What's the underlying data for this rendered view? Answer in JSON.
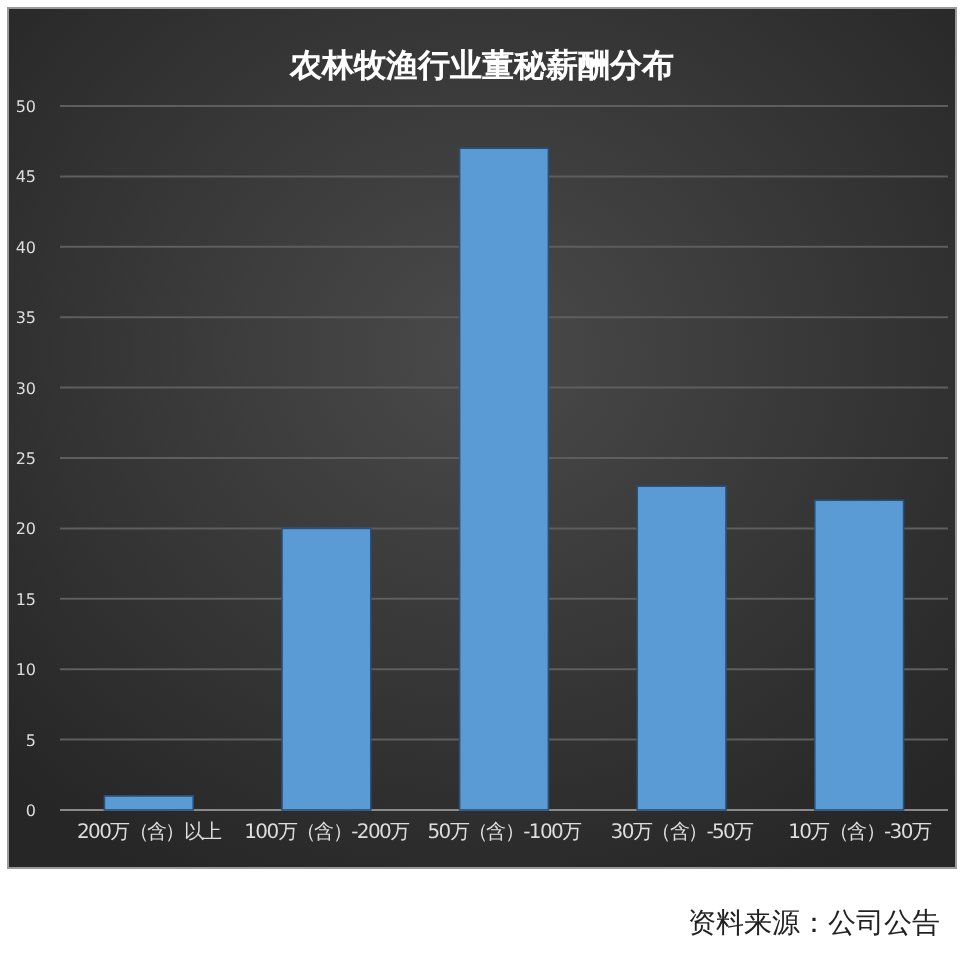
{
  "chart_data": {
    "type": "bar",
    "title": "农林牧渔行业董秘薪酬分布",
    "categories": [
      "200万（含）以上",
      "100万（含）-200万",
      "50万（含）-100万",
      "30万（含）-50万",
      "10万（含）-30万"
    ],
    "values": [
      1,
      20,
      47,
      23,
      22
    ],
    "color": "#5b9bd5",
    "ylim": [
      0,
      50
    ],
    "yticks": [
      0,
      5,
      10,
      15,
      20,
      25,
      30,
      35,
      40,
      45,
      50
    ],
    "grid": "y",
    "annotations": [
      "资料来源：公司公告"
    ]
  }
}
